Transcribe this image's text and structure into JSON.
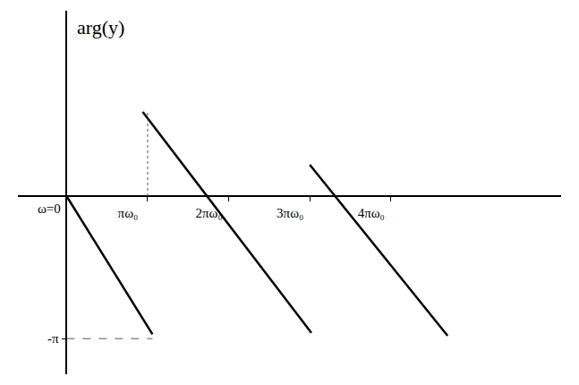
{
  "chart_data": {
    "type": "line",
    "y_label": "arg(y)",
    "series": [
      {
        "color": "#000000",
        "x": [
          0,
          1.06
        ],
        "values": [
          0,
          -0.97
        ]
      },
      {
        "color": "#000000",
        "x": [
          0.94,
          3.02
        ],
        "values": [
          0.59,
          -0.96
        ]
      },
      {
        "color": "#000000",
        "x": [
          3.0,
          4.7
        ],
        "values": [
          0.22,
          -0.98
        ]
      }
    ],
    "xlim": [
      -0.6,
      6.1
    ],
    "xticks": [
      {
        "value": 1,
        "label": "πω₀"
      },
      {
        "value": 2,
        "label": "2πω₀"
      },
      {
        "value": 3,
        "label": "3πω₀"
      },
      {
        "value": 4,
        "label": "4πω₀"
      }
    ],
    "ylim": [
      -1.25,
      1.3
    ],
    "yticks": [
      {
        "value": -1,
        "label": "-π"
      }
    ],
    "annotations": [
      {
        "text": "ω=0",
        "x": 0,
        "y": 0
      }
    ],
    "grid": false
  }
}
